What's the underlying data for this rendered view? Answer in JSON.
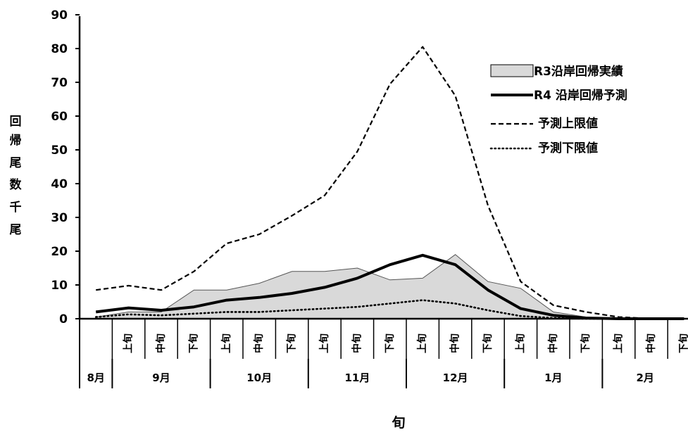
{
  "chart_data": {
    "type": "line",
    "ylabel_chars": [
      "回",
      "帰",
      "尾",
      "数"
    ],
    "yunit": "千尾",
    "xlabel": "旬",
    "ylim": [
      0,
      90
    ],
    "yticks": [
      0,
      10,
      20,
      30,
      40,
      50,
      60,
      70,
      80,
      90
    ],
    "categories": [
      "8月",
      "9月 上旬",
      "9月 中旬",
      "9月 下旬",
      "10月 上旬",
      "10月 中旬",
      "10月 下旬",
      "11月 上旬",
      "11月 中旬",
      "11月 下旬",
      "12月 上旬",
      "12月 中旬",
      "12月 下旬",
      "1月 上旬",
      "1月 中旬",
      "1月 下旬",
      "2月 上旬",
      "2月 中旬",
      "2月 下旬"
    ],
    "dekad_labels": [
      "上旬",
      "中旬",
      "下旬",
      "上旬",
      "中旬",
      "下旬",
      "上旬",
      "中旬",
      "下旬",
      "上旬",
      "中旬",
      "下旬",
      "上旬",
      "中旬",
      "下旬",
      "上旬",
      "中旬",
      "下旬"
    ],
    "months": [
      {
        "label": "8月",
        "span": 1
      },
      {
        "label": "9月",
        "span": 3
      },
      {
        "label": "10月",
        "span": 3
      },
      {
        "label": "11月",
        "span": 3
      },
      {
        "label": "12月",
        "span": 3
      },
      {
        "label": "1月",
        "span": 3
      },
      {
        "label": "2月",
        "span": 3
      }
    ],
    "series": [
      {
        "name": "R3沿岸回帰実績",
        "style": "area",
        "color": "#d9d9d9",
        "values": [
          0.5,
          2,
          2,
          8.5,
          8.5,
          10.5,
          14,
          14,
          15,
          11.5,
          12,
          19,
          11,
          9,
          2,
          0.5,
          0,
          0,
          0
        ]
      },
      {
        "name": "R4 沿岸回帰予測",
        "style": "solid",
        "values": [
          2,
          3.2,
          2.5,
          3.5,
          5.5,
          6.3,
          7.5,
          9.3,
          12,
          16,
          18.8,
          16,
          8.5,
          3,
          1,
          0.2,
          0,
          0,
          0
        ]
      },
      {
        "name": "予測上限値",
        "style": "dashed",
        "values": [
          8.5,
          9.8,
          8.5,
          14,
          22.3,
          25,
          30.5,
          36.5,
          49.5,
          69.5,
          80.5,
          66,
          33.5,
          11,
          4,
          2,
          0.5,
          0,
          0
        ]
      },
      {
        "name": "予測下限値",
        "style": "dotted",
        "values": [
          0.5,
          1.3,
          1,
          1.5,
          2,
          2,
          2.5,
          3,
          3.5,
          4.5,
          5.5,
          4.5,
          2.5,
          0.8,
          0.2,
          0,
          0,
          0,
          0
        ]
      }
    ],
    "legend_position": "top-right"
  }
}
